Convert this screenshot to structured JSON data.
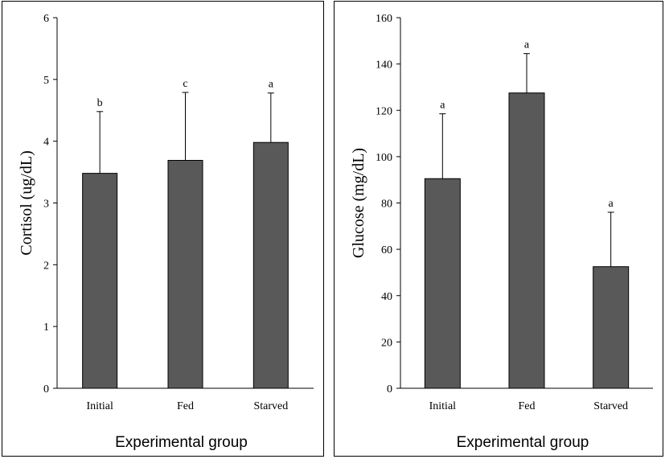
{
  "chart_data": [
    {
      "type": "bar",
      "title": "",
      "xlabel": "Experimental group",
      "ylabel": "Cortisol (ug/dL)",
      "categories": [
        "Initial",
        "Fed",
        "Starved"
      ],
      "values": [
        3.48,
        3.69,
        3.98
      ],
      "error": [
        1.0,
        1.1,
        0.8
      ],
      "significance": [
        "b",
        "c",
        "a"
      ],
      "ylim": [
        0,
        6
      ],
      "yticks": [
        "0",
        "1",
        "2",
        "3",
        "4",
        "5",
        "6"
      ],
      "bar_color": "#595959",
      "grid": false
    },
    {
      "type": "bar",
      "title": "",
      "xlabel": "Experimental group",
      "ylabel": "Glucose (mg/dL)",
      "categories": [
        "Initial",
        "Fed",
        "Starved"
      ],
      "values": [
        90.5,
        127.5,
        52.5
      ],
      "error": [
        28,
        17,
        23.5
      ],
      "significance": [
        "a",
        "a",
        "a"
      ],
      "ylim": [
        0,
        160
      ],
      "yticks": [
        "0",
        "20",
        "40",
        "60",
        "80",
        "100",
        "120",
        "140",
        "160"
      ],
      "bar_color": "#595959",
      "grid": false
    }
  ]
}
